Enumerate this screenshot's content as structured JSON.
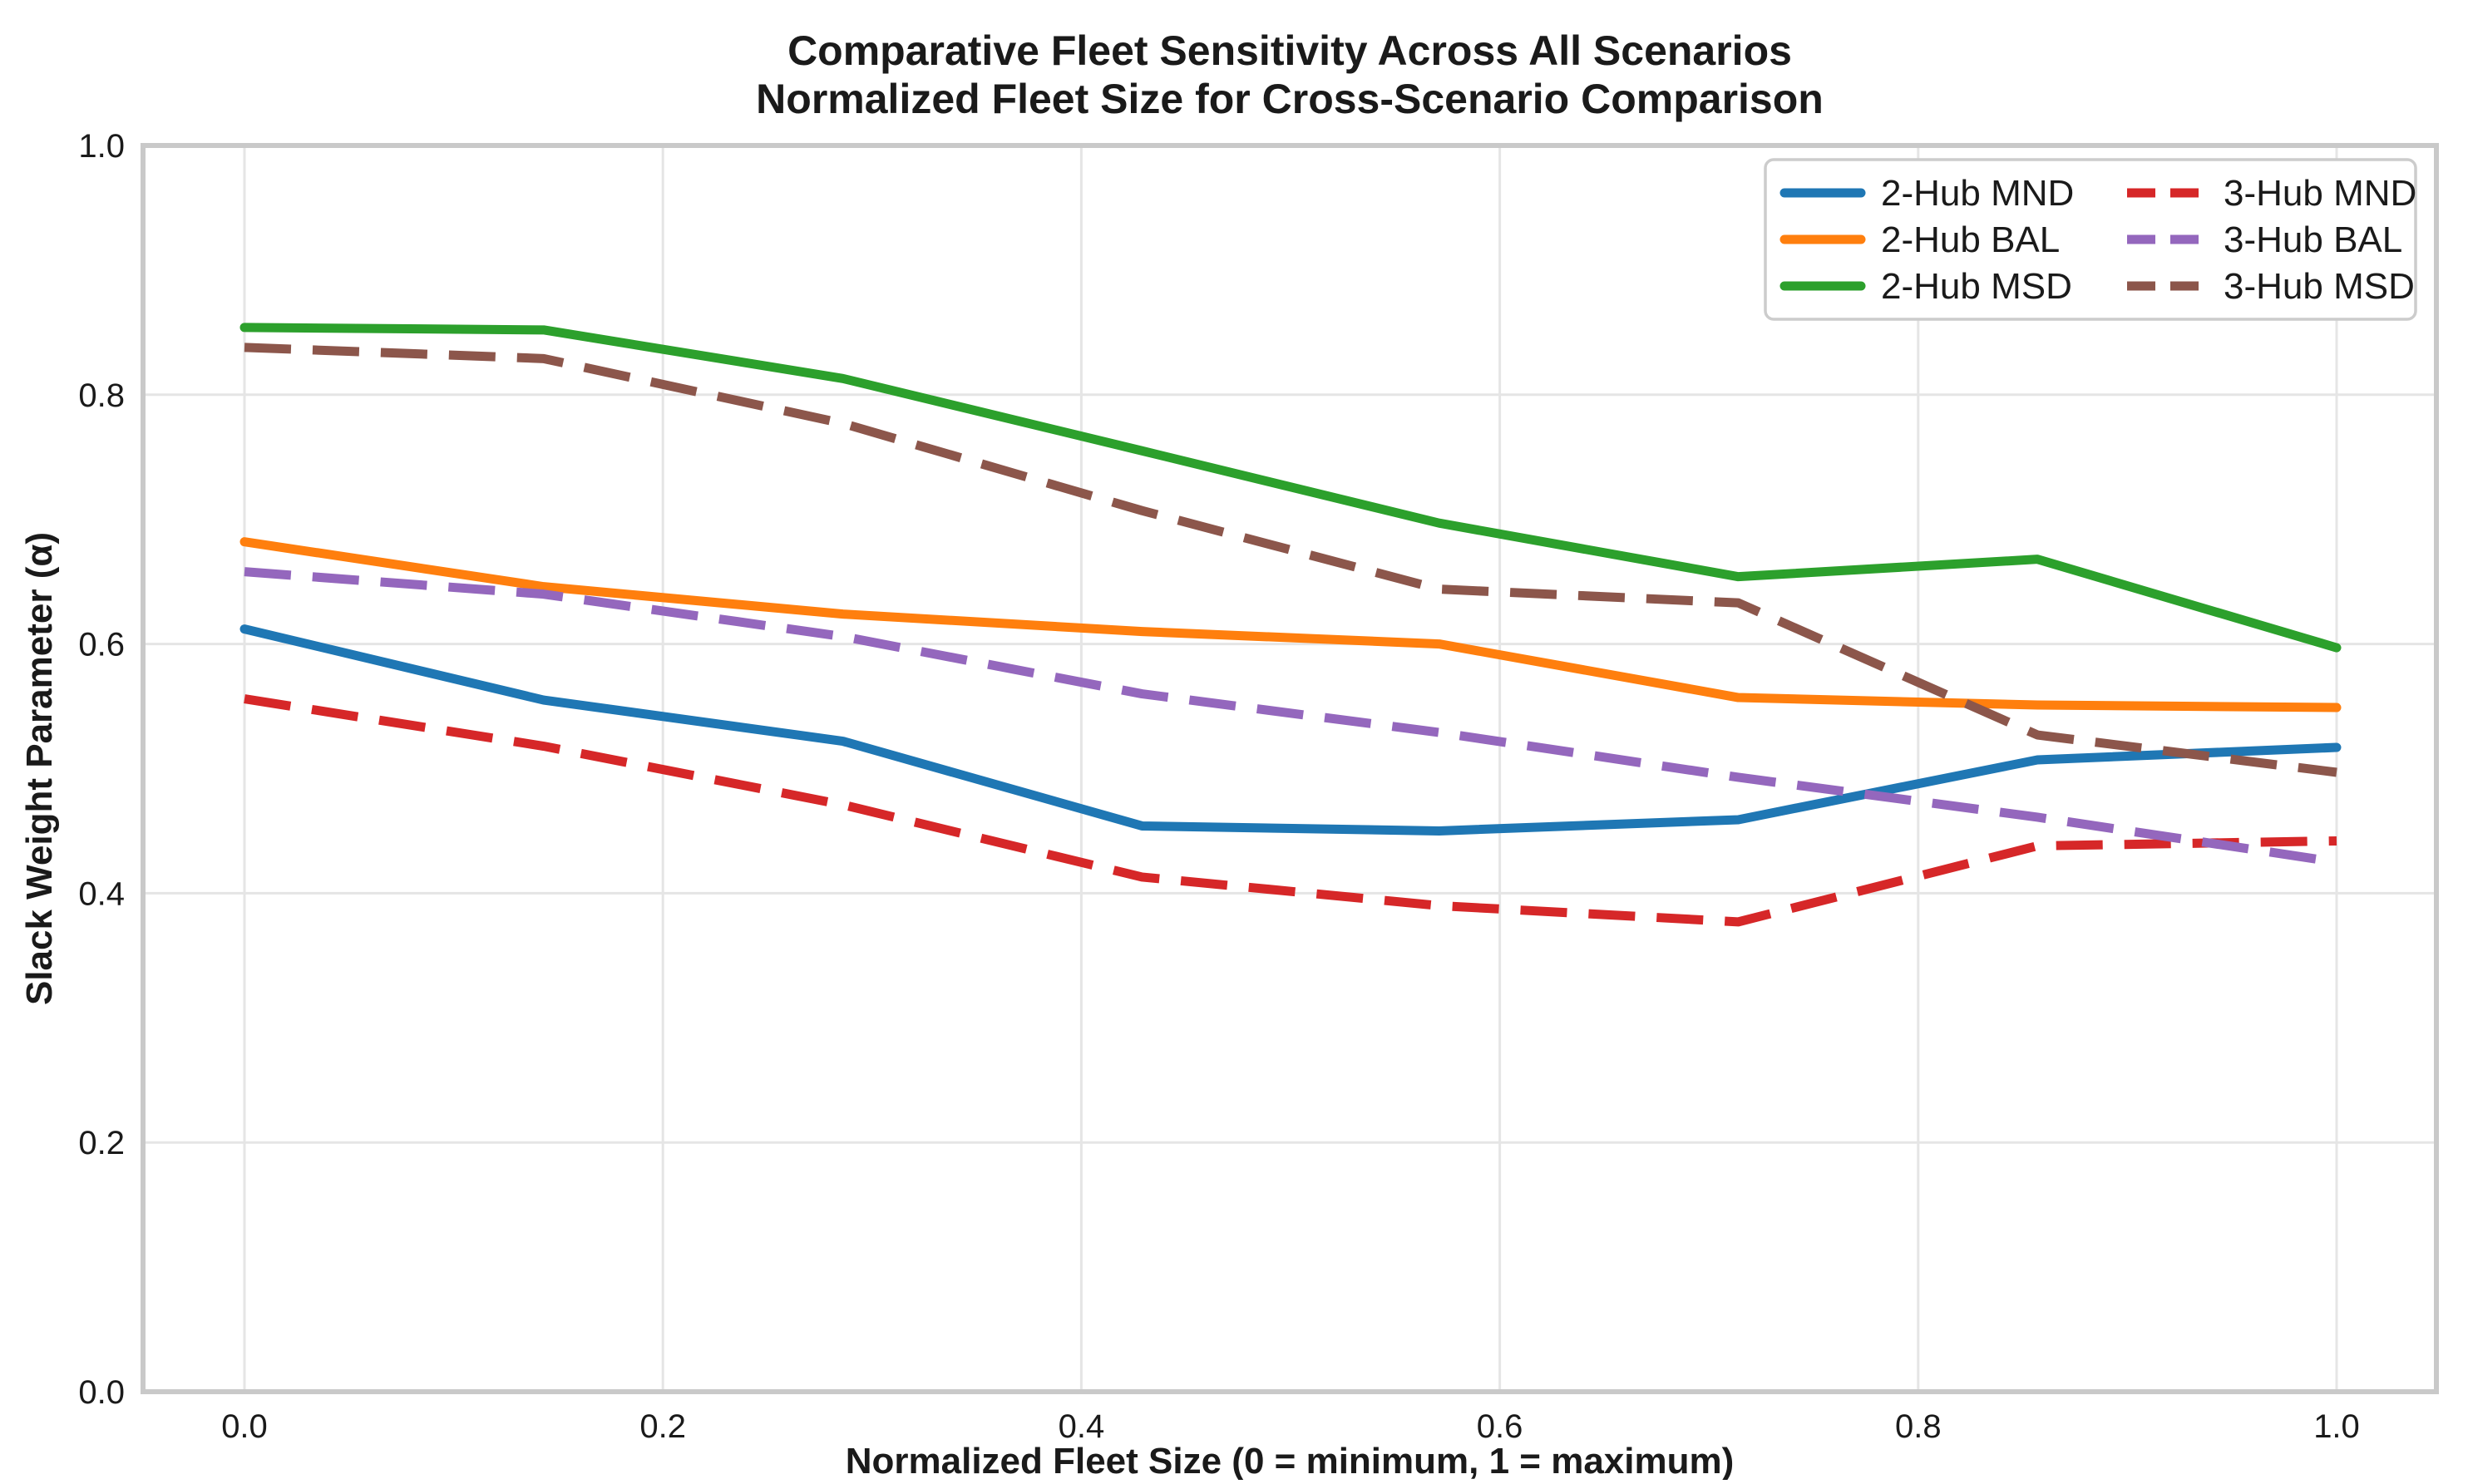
{
  "title": {
    "line1": "Comparative Fleet Sensitivity Across All Scenarios",
    "line2": "Normalized Fleet Size for Cross-Scenario Comparison"
  },
  "axes": {
    "xlabel": "Normalized Fleet Size (0 = minimum, 1 = maximum)",
    "ylabel": "Slack Weight Parameter (α)",
    "xticks": [
      "0.0",
      "0.2",
      "0.4",
      "0.6",
      "0.8",
      "1.0"
    ],
    "yticks": [
      "0.0",
      "0.2",
      "0.4",
      "0.6",
      "0.8",
      "1.0"
    ]
  },
  "style": {
    "background": "#ffffff",
    "grid_color": "#e5e5e5",
    "spine_color": "#c9c9c9",
    "text_color": "#1a1a1a",
    "legend_border_color": "#cccccc"
  },
  "legend": {
    "columns": 2,
    "entries": [
      {
        "label": "2-Hub MND",
        "color": "#1f77b4",
        "style": "solid"
      },
      {
        "label": "2-Hub BAL",
        "color": "#ff7f0e",
        "style": "solid"
      },
      {
        "label": "2-Hub MSD",
        "color": "#2ca02c",
        "style": "solid"
      },
      {
        "label": "3-Hub MND",
        "color": "#d62728",
        "style": "dashed"
      },
      {
        "label": "3-Hub BAL",
        "color": "#9467bd",
        "style": "dashed"
      },
      {
        "label": "3-Hub MSD",
        "color": "#8c564b",
        "style": "dashed"
      }
    ]
  },
  "chart_data": {
    "type": "line",
    "title": "Comparative Fleet Sensitivity Across All Scenarios — Normalized Fleet Size for Cross-Scenario Comparison",
    "xlabel": "Normalized Fleet Size (0 = minimum, 1 = maximum)",
    "ylabel": "Slack Weight Parameter (α)",
    "xlim": [
      -0.05,
      1.05
    ],
    "ylim": [
      0.0,
      1.0
    ],
    "grid": true,
    "legend_position": "upper right",
    "legend_columns": 2,
    "x": [
      0.0,
      0.143,
      0.286,
      0.429,
      0.571,
      0.714,
      0.857,
      1.0
    ],
    "series": [
      {
        "name": "2-Hub MND",
        "color": "#1f77b4",
        "style": "solid",
        "values": [
          0.612,
          0.555,
          0.522,
          0.454,
          0.45,
          0.459,
          0.507,
          0.517
        ]
      },
      {
        "name": "2-Hub BAL",
        "color": "#ff7f0e",
        "style": "solid",
        "values": [
          0.682,
          0.646,
          0.624,
          0.61,
          0.6,
          0.557,
          0.551,
          0.549
        ]
      },
      {
        "name": "2-Hub MSD",
        "color": "#2ca02c",
        "style": "solid",
        "values": [
          0.854,
          0.852,
          0.813,
          0.755,
          0.697,
          0.654,
          0.668,
          0.597
        ]
      },
      {
        "name": "3-Hub MND",
        "color": "#d62728",
        "style": "dashed",
        "values": [
          0.556,
          0.518,
          0.471,
          0.413,
          0.39,
          0.377,
          0.438,
          0.442
        ]
      },
      {
        "name": "3-Hub BAL",
        "color": "#9467bd",
        "style": "dashed",
        "values": [
          0.658,
          0.64,
          0.606,
          0.56,
          0.529,
          0.493,
          0.461,
          0.425
        ]
      },
      {
        "name": "3-Hub MSD",
        "color": "#8c564b",
        "style": "dashed",
        "values": [
          0.838,
          0.829,
          0.777,
          0.707,
          0.644,
          0.633,
          0.527,
          0.497
        ]
      }
    ]
  }
}
